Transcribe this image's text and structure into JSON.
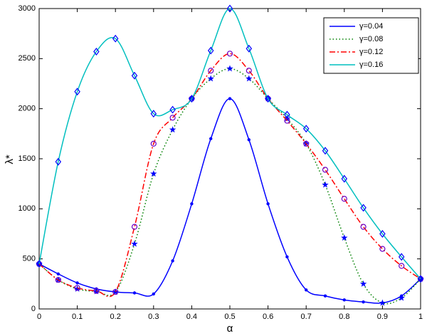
{
  "chart_data": {
    "type": "line",
    "xlabel": "α",
    "ylabel": "λ*",
    "x": [
      0,
      0.05,
      0.1,
      0.15,
      0.2,
      0.25,
      0.3,
      0.35,
      0.4,
      0.45,
      0.5,
      0.55,
      0.6,
      0.65,
      0.7,
      0.75,
      0.8,
      0.85,
      0.9,
      0.95,
      1
    ],
    "series": [
      {
        "name": "γ=0.04",
        "color": "#0000ff",
        "dash": "solid",
        "marker": "dot",
        "marker_color": "#0000ff",
        "values": [
          450,
          350,
          260,
          200,
          170,
          160,
          150,
          480,
          1050,
          1700,
          2100,
          1690,
          1050,
          520,
          190,
          130,
          90,
          70,
          60,
          130,
          300
        ]
      },
      {
        "name": "γ=0.08",
        "color": "#008000",
        "dash": "dotted",
        "marker": "star",
        "marker_color": "#0000ff",
        "values": [
          450,
          290,
          200,
          175,
          170,
          650,
          1350,
          1790,
          2100,
          2300,
          2400,
          2300,
          2100,
          1900,
          1650,
          1240,
          710,
          250,
          60,
          110,
          300
        ]
      },
      {
        "name": "γ=0.12",
        "color": "#ff0000",
        "dash": "dashdot",
        "marker": "circle",
        "marker_color": "#6a00c8",
        "values": [
          450,
          290,
          210,
          180,
          170,
          820,
          1650,
          1910,
          2100,
          2380,
          2550,
          2380,
          2100,
          1880,
          1650,
          1390,
          1100,
          820,
          600,
          430,
          300
        ]
      },
      {
        "name": "γ=0.16",
        "color": "#00bfbf",
        "dash": "solid",
        "marker": "diamond",
        "marker_color": "#0000ff",
        "values": [
          450,
          1470,
          2170,
          2570,
          2700,
          2330,
          1950,
          1990,
          2100,
          2580,
          3000,
          2600,
          2100,
          1940,
          1800,
          1580,
          1300,
          1010,
          750,
          520,
          300
        ]
      }
    ],
    "xlim": [
      0,
      1
    ],
    "xticks": [
      0,
      0.1,
      0.2,
      0.3,
      0.4,
      0.5,
      0.6,
      0.7,
      0.8,
      0.9,
      1
    ],
    "ylim": [
      0,
      3000
    ],
    "yticks": [
      0,
      500,
      1000,
      1500,
      2000,
      2500,
      3000
    ],
    "grid": false,
    "legend": "upper right"
  }
}
